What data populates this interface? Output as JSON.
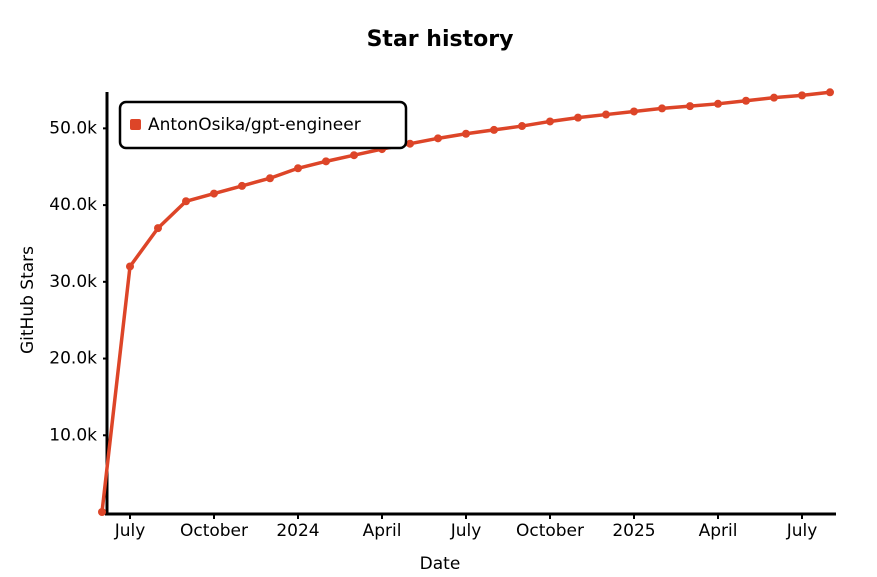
{
  "chart_data": {
    "type": "line",
    "title": "Star history",
    "x_label": "Date",
    "y_label": "GitHub Stars",
    "x": [
      "2023-06",
      "2023-07",
      "2023-08",
      "2023-09",
      "2023-10",
      "2023-11",
      "2023-12",
      "2024-01",
      "2024-02",
      "2024-03",
      "2024-04",
      "2024-05",
      "2024-06",
      "2024-07",
      "2024-08",
      "2024-09",
      "2024-10",
      "2024-11",
      "2024-12",
      "2025-01",
      "2025-02",
      "2025-03",
      "2025-04",
      "2025-05",
      "2025-06",
      "2025-07",
      "2025-08"
    ],
    "series": [
      {
        "name": "AntonOsika/gpt-engineer",
        "color": "#dd4528",
        "values": [
          0,
          32000,
          37000,
          40500,
          41500,
          42500,
          43500,
          44800,
          45700,
          46500,
          47300,
          48000,
          48700,
          49300,
          49800,
          50300,
          50900,
          51400,
          51800,
          52200,
          52600,
          52900,
          53200,
          53600,
          54000,
          54300,
          54700
        ]
      }
    ],
    "xlim": [
      "2023-06",
      "2025-08"
    ],
    "xticks": [
      {
        "value": "2023-07",
        "label": "July"
      },
      {
        "value": "2023-10",
        "label": "October"
      },
      {
        "value": "2024-01",
        "label": "2024"
      },
      {
        "value": "2024-04",
        "label": "April"
      },
      {
        "value": "2024-07",
        "label": "July"
      },
      {
        "value": "2024-10",
        "label": "October"
      },
      {
        "value": "2025-01",
        "label": "2025"
      },
      {
        "value": "2025-04",
        "label": "April"
      },
      {
        "value": "2025-07",
        "label": "July"
      }
    ],
    "ylim": [
      0,
      55000
    ],
    "yticks": [
      {
        "value": 10000,
        "label": "10.0k"
      },
      {
        "value": 20000,
        "label": "20.0k"
      },
      {
        "value": 30000,
        "label": "30.0k"
      },
      {
        "value": 40000,
        "label": "40.0k"
      },
      {
        "value": 50000,
        "label": "50.0k"
      }
    ],
    "legend": "upper left"
  }
}
